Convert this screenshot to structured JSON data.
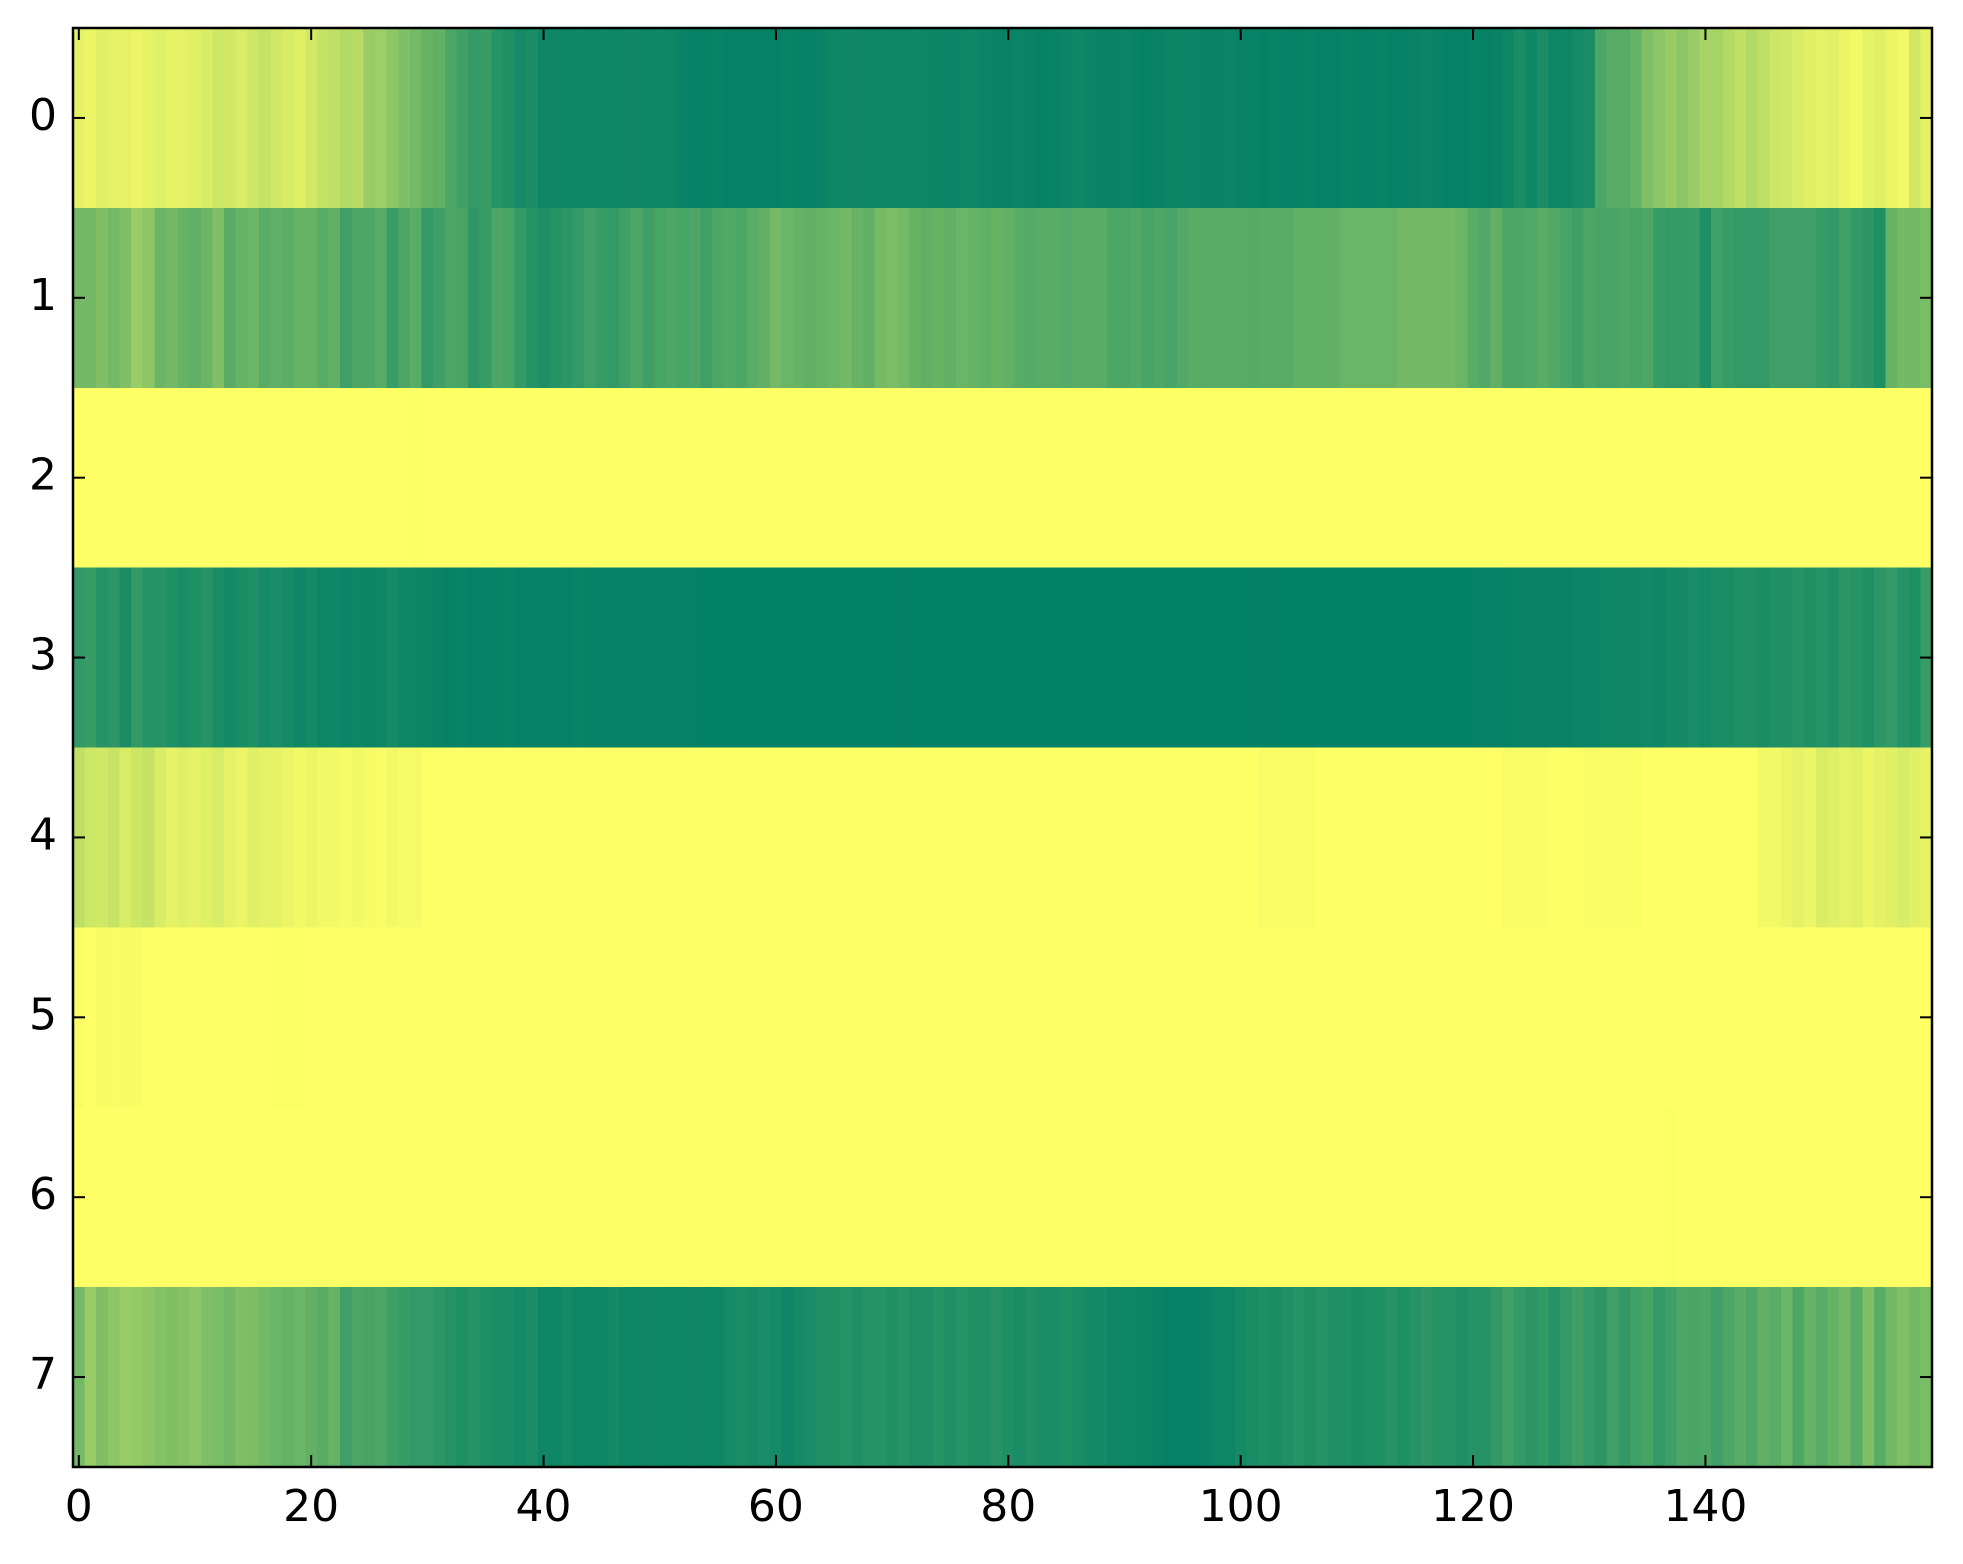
{
  "chart_data": {
    "type": "heatmap",
    "colormap": "summer",
    "xlim": [
      -0.5,
      159.5
    ],
    "ylim": [
      7.5,
      -0.5
    ],
    "xticks": [
      0,
      20,
      40,
      60,
      80,
      100,
      120,
      140
    ],
    "yticks": [
      0,
      1,
      2,
      3,
      4,
      5,
      6,
      7
    ],
    "values": [
      [
        0.9,
        0.92,
        0.88,
        0.9,
        0.9,
        0.92,
        0.9,
        0.88,
        0.9,
        0.9,
        0.88,
        0.85,
        0.8,
        0.82,
        0.85,
        0.8,
        0.78,
        0.82,
        0.85,
        0.88,
        0.82,
        0.78,
        0.75,
        0.7,
        0.72,
        0.6,
        0.62,
        0.55,
        0.5,
        0.45,
        0.4,
        0.38,
        0.3,
        0.25,
        0.2,
        0.22,
        0.15,
        0.12,
        0.08,
        0.1,
        0.06,
        0.06,
        0.05,
        0.06,
        0.05,
        0.06,
        0.05,
        0.06,
        0.06,
        0.05,
        0.06,
        0.05,
        0.03,
        0.02,
        0.02,
        0.03,
        0.02,
        0.02,
        0.02,
        0.02,
        0.02,
        0.03,
        0.02,
        0.02,
        0.03,
        0.05,
        0.06,
        0.06,
        0.05,
        0.06,
        0.05,
        0.05,
        0.06,
        0.05,
        0.04,
        0.04,
        0.05,
        0.06,
        0.04,
        0.03,
        0.03,
        0.04,
        0.03,
        0.02,
        0.03,
        0.04,
        0.06,
        0.04,
        0.03,
        0.03,
        0.04,
        0.03,
        0.02,
        0.03,
        0.04,
        0.05,
        0.04,
        0.03,
        0.03,
        0.04,
        0.03,
        0.03,
        0.02,
        0.03,
        0.02,
        0.02,
        0.03,
        0.02,
        0.02,
        0.03,
        0.02,
        0.02,
        0.03,
        0.02,
        0.02,
        0.03,
        0.04,
        0.03,
        0.02,
        0.02,
        0.03,
        0.02,
        0.03,
        0.05,
        0.1,
        0.06,
        0.1,
        0.05,
        0.06,
        0.08,
        0.1,
        0.3,
        0.35,
        0.35,
        0.4,
        0.5,
        0.55,
        0.6,
        0.55,
        0.6,
        0.65,
        0.65,
        0.7,
        0.75,
        0.7,
        0.75,
        0.8,
        0.82,
        0.85,
        0.88,
        0.9,
        0.88,
        0.92,
        0.95,
        0.9,
        0.88,
        0.92,
        0.95,
        0.82,
        0.9
      ],
      [
        0.45,
        0.45,
        0.5,
        0.45,
        0.5,
        0.6,
        0.55,
        0.42,
        0.45,
        0.4,
        0.38,
        0.42,
        0.5,
        0.35,
        0.4,
        0.42,
        0.35,
        0.38,
        0.36,
        0.4,
        0.4,
        0.35,
        0.38,
        0.25,
        0.3,
        0.3,
        0.35,
        0.22,
        0.3,
        0.35,
        0.2,
        0.25,
        0.3,
        0.28,
        0.18,
        0.22,
        0.3,
        0.28,
        0.2,
        0.15,
        0.12,
        0.15,
        0.18,
        0.2,
        0.25,
        0.22,
        0.2,
        0.25,
        0.3,
        0.25,
        0.28,
        0.3,
        0.28,
        0.3,
        0.25,
        0.3,
        0.32,
        0.3,
        0.35,
        0.38,
        0.45,
        0.42,
        0.4,
        0.38,
        0.4,
        0.42,
        0.45,
        0.4,
        0.38,
        0.45,
        0.48,
        0.45,
        0.4,
        0.38,
        0.4,
        0.38,
        0.42,
        0.4,
        0.38,
        0.4,
        0.38,
        0.35,
        0.33,
        0.35,
        0.35,
        0.33,
        0.35,
        0.35,
        0.35,
        0.3,
        0.3,
        0.32,
        0.28,
        0.3,
        0.28,
        0.32,
        0.35,
        0.35,
        0.35,
        0.35,
        0.35,
        0.33,
        0.35,
        0.35,
        0.35,
        0.38,
        0.38,
        0.38,
        0.38,
        0.42,
        0.42,
        0.42,
        0.42,
        0.42,
        0.45,
        0.45,
        0.45,
        0.45,
        0.45,
        0.42,
        0.35,
        0.32,
        0.38,
        0.3,
        0.3,
        0.32,
        0.35,
        0.32,
        0.28,
        0.25,
        0.3,
        0.28,
        0.28,
        0.3,
        0.28,
        0.3,
        0.22,
        0.2,
        0.2,
        0.22,
        0.12,
        0.25,
        0.22,
        0.2,
        0.2,
        0.2,
        0.25,
        0.25,
        0.25,
        0.25,
        0.22,
        0.2,
        0.25,
        0.2,
        0.18,
        0.12,
        0.4,
        0.45,
        0.45,
        0.48
      ],
      [
        1,
        1,
        1,
        1,
        1,
        1,
        1,
        1,
        1,
        1,
        1,
        1,
        1,
        1,
        1,
        1,
        1,
        1,
        1,
        1,
        1,
        1,
        1,
        1,
        1,
        1,
        1,
        1,
        1,
        0.99,
        1,
        1,
        1,
        1,
        1,
        1,
        1,
        1,
        1,
        1,
        1,
        1,
        1,
        1,
        1,
        1,
        1,
        1,
        1,
        1,
        1,
        1,
        1,
        1,
        1,
        1,
        1,
        1,
        1,
        1,
        1,
        1,
        1,
        1,
        1,
        1,
        1,
        1,
        1,
        1,
        1,
        1,
        1,
        1,
        1,
        1,
        1,
        1,
        1,
        1,
        1,
        1,
        1,
        1,
        1,
        1,
        1,
        1,
        1,
        1,
        1,
        1,
        1,
        1,
        1,
        1,
        1,
        1,
        1,
        1,
        1,
        1,
        1,
        1,
        1,
        1,
        1,
        1,
        1,
        1,
        1,
        1,
        1,
        1,
        1,
        1,
        1,
        1,
        1,
        1,
        1,
        1,
        1,
        1,
        1,
        1,
        1,
        1,
        1,
        1,
        1,
        1,
        1,
        1,
        1,
        1,
        1,
        1,
        1,
        1,
        1,
        1,
        1,
        1,
        1,
        1,
        1,
        1,
        1,
        1,
        1,
        1,
        1,
        1,
        1,
        1,
        1,
        1,
        1,
        1
      ],
      [
        0.2,
        0.22,
        0.15,
        0.18,
        0.1,
        0.2,
        0.15,
        0.15,
        0.12,
        0.1,
        0.12,
        0.15,
        0.1,
        0.08,
        0.1,
        0.12,
        0.08,
        0.1,
        0.08,
        0.06,
        0.08,
        0.05,
        0.06,
        0.04,
        0.05,
        0.04,
        0.06,
        0.08,
        0.06,
        0.05,
        0.04,
        0.03,
        0.02,
        0.03,
        0.02,
        0.02,
        0.02,
        0.03,
        0.02,
        0.02,
        0.02,
        0.02,
        0.02,
        0.03,
        0.02,
        0.02,
        0.02,
        0.02,
        0.02,
        0.02,
        0.02,
        0.02,
        0.02,
        0.02,
        0.01,
        0.01,
        0.01,
        0.01,
        0.01,
        0.01,
        0.01,
        0.01,
        0.01,
        0.01,
        0.01,
        0.01,
        0.01,
        0.01,
        0.01,
        0.01,
        0.01,
        0.02,
        0.01,
        0.01,
        0.01,
        0.01,
        0.01,
        0.01,
        0.01,
        0.01,
        0.01,
        0.01,
        0.01,
        0.01,
        0.01,
        0.01,
        0.01,
        0.01,
        0.01,
        0.01,
        0.01,
        0.01,
        0.01,
        0.01,
        0.01,
        0.01,
        0.01,
        0.01,
        0.01,
        0.01,
        0.01,
        0.01,
        0.02,
        0.01,
        0.01,
        0.01,
        0.01,
        0.01,
        0.01,
        0.01,
        0.01,
        0.01,
        0.01,
        0.01,
        0.01,
        0.01,
        0.01,
        0.01,
        0.01,
        0.01,
        0.02,
        0.02,
        0.02,
        0.02,
        0.03,
        0.03,
        0.03,
        0.03,
        0.03,
        0.04,
        0.04,
        0.05,
        0.05,
        0.06,
        0.06,
        0.07,
        0.06,
        0.08,
        0.08,
        0.1,
        0.08,
        0.1,
        0.1,
        0.12,
        0.12,
        0.1,
        0.12,
        0.12,
        0.15,
        0.12,
        0.15,
        0.12,
        0.18,
        0.15,
        0.12,
        0.18,
        0.2,
        0.15,
        0.12,
        0.22
      ],
      [
        0.75,
        0.8,
        0.82,
        0.78,
        0.85,
        0.8,
        0.78,
        0.85,
        0.9,
        0.88,
        0.9,
        0.88,
        0.85,
        0.9,
        0.92,
        0.88,
        0.9,
        0.9,
        0.92,
        0.95,
        0.92,
        0.95,
        0.95,
        0.97,
        0.95,
        0.97,
        0.98,
        0.95,
        0.97,
        0.96,
        1,
        1,
        1,
        1,
        1,
        1,
        1,
        1,
        1,
        1,
        1,
        1,
        1,
        1,
        1,
        1,
        1,
        1,
        1,
        1,
        1,
        1,
        1,
        1,
        1,
        1,
        1,
        1,
        1,
        1,
        1,
        1,
        1,
        1,
        1,
        1,
        1,
        1,
        1,
        1,
        1,
        1,
        1,
        1,
        1,
        1,
        1,
        1,
        1,
        1,
        1,
        1,
        1,
        1,
        1,
        1,
        1,
        1,
        1,
        1,
        1,
        1,
        1,
        1,
        1,
        1,
        1,
        1,
        1,
        1,
        1,
        1,
        0.98,
        0.98,
        0.98,
        0.98,
        0.98,
        1,
        1,
        1,
        1,
        1,
        1,
        1,
        1,
        1,
        1,
        1,
        1,
        1,
        1,
        1,
        1,
        0.98,
        0.98,
        0.98,
        0.98,
        1,
        1,
        1,
        0.98,
        0.98,
        0.98,
        0.98,
        0.98,
        1,
        1,
        1,
        1,
        1,
        1,
        1,
        1,
        1,
        1,
        0.95,
        0.95,
        0.92,
        0.9,
        0.92,
        0.85,
        0.88,
        0.9,
        0.88,
        0.92,
        0.9,
        0.88,
        0.85,
        0.88,
        0.9
      ],
      [
        0.98,
        1,
        0.97,
        0.98,
        0.97,
        0.98,
        1,
        1,
        1,
        1,
        1,
        1,
        1,
        1,
        1,
        1,
        1,
        0.99,
        0.99,
        0.99,
        1,
        1,
        1,
        1,
        1,
        1,
        1,
        1,
        1,
        1,
        1,
        1,
        1,
        1,
        1,
        1,
        1,
        1,
        1,
        1,
        1,
        1,
        1,
        1,
        1,
        1,
        1,
        1,
        1,
        1,
        1,
        1,
        1,
        1,
        1,
        1,
        1,
        1,
        1,
        1,
        1,
        1,
        1,
        1,
        1,
        1,
        1,
        1,
        1,
        1,
        1,
        1,
        1,
        1,
        1,
        1,
        1,
        1,
        1,
        1,
        1,
        1,
        1,
        1,
        1,
        1,
        1,
        1,
        1,
        1,
        1,
        1,
        1,
        1,
        1,
        1,
        1,
        1,
        1,
        1,
        1,
        1,
        1,
        1,
        1,
        1,
        1,
        1,
        1,
        1,
        1,
        1,
        1,
        1,
        1,
        1,
        1,
        1,
        1,
        1,
        1,
        1,
        1,
        1,
        1,
        1,
        1,
        1,
        1,
        1,
        1,
        1,
        1,
        1,
        1,
        1,
        1,
        1,
        1,
        1,
        1,
        1,
        1,
        1,
        1,
        1,
        1,
        1,
        1,
        1,
        1,
        1,
        1,
        1,
        1,
        1,
        1,
        1,
        1,
        1
      ],
      [
        1,
        1,
        1,
        1,
        1,
        1,
        1,
        1,
        1,
        1,
        1,
        1,
        1,
        1,
        1,
        1,
        1,
        1,
        1,
        1,
        1,
        1,
        1,
        1,
        1,
        1,
        1,
        1,
        1,
        1,
        1,
        1,
        1,
        1,
        1,
        1,
        1,
        1,
        1,
        1,
        1,
        1,
        1,
        1,
        1,
        1,
        1,
        1,
        1,
        1,
        1,
        1,
        1,
        1,
        1,
        1,
        1,
        1,
        1,
        1,
        1,
        1,
        1,
        1,
        1,
        1,
        1,
        1,
        1,
        1,
        1,
        1,
        1,
        1,
        1,
        1,
        1,
        1,
        1,
        1,
        1,
        1,
        1,
        1,
        1,
        1,
        1,
        1,
        1,
        1,
        1,
        1,
        1,
        1,
        1,
        1,
        1,
        1,
        1,
        1,
        1,
        1,
        1,
        1,
        1,
        1,
        1,
        1,
        1,
        1,
        1,
        1,
        1,
        1,
        1,
        1,
        1,
        1,
        1,
        1,
        1,
        1,
        1,
        1,
        1,
        1,
        1,
        1,
        1,
        1,
        1,
        1,
        1,
        1,
        1,
        1,
        1,
        0.99,
        1,
        1,
        1,
        1,
        1,
        1,
        1,
        1,
        1,
        1,
        1,
        1,
        1,
        1,
        1,
        1,
        1,
        1,
        1,
        1,
        1,
        1
      ],
      [
        0.45,
        0.6,
        0.5,
        0.55,
        0.6,
        0.58,
        0.55,
        0.52,
        0.5,
        0.52,
        0.55,
        0.5,
        0.48,
        0.45,
        0.5,
        0.48,
        0.45,
        0.42,
        0.4,
        0.42,
        0.38,
        0.35,
        0.4,
        0.25,
        0.3,
        0.28,
        0.3,
        0.25,
        0.22,
        0.2,
        0.2,
        0.18,
        0.15,
        0.12,
        0.15,
        0.12,
        0.1,
        0.1,
        0.08,
        0.1,
        0.06,
        0.05,
        0.08,
        0.06,
        0.05,
        0.06,
        0.08,
        0.06,
        0.05,
        0.06,
        0.06,
        0.05,
        0.05,
        0.06,
        0.05,
        0.06,
        0.08,
        0.1,
        0.08,
        0.1,
        0.08,
        0.06,
        0.08,
        0.1,
        0.12,
        0.12,
        0.15,
        0.12,
        0.15,
        0.15,
        0.12,
        0.15,
        0.12,
        0.12,
        0.15,
        0.12,
        0.15,
        0.12,
        0.12,
        0.15,
        0.12,
        0.1,
        0.12,
        0.1,
        0.1,
        0.12,
        0.1,
        0.08,
        0.08,
        0.06,
        0.06,
        0.05,
        0.04,
        0.03,
        0.02,
        0.02,
        0.02,
        0.03,
        0.05,
        0.06,
        0.08,
        0.1,
        0.12,
        0.1,
        0.12,
        0.15,
        0.12,
        0.15,
        0.12,
        0.12,
        0.1,
        0.12,
        0.12,
        0.15,
        0.12,
        0.15,
        0.18,
        0.15,
        0.15,
        0.12,
        0.15,
        0.15,
        0.2,
        0.25,
        0.2,
        0.18,
        0.2,
        0.15,
        0.2,
        0.25,
        0.2,
        0.18,
        0.25,
        0.2,
        0.25,
        0.28,
        0.2,
        0.25,
        0.3,
        0.28,
        0.3,
        0.25,
        0.3,
        0.35,
        0.3,
        0.38,
        0.35,
        0.42,
        0.3,
        0.4,
        0.35,
        0.4,
        0.45,
        0.35,
        0.5,
        0.35,
        0.45,
        0.5,
        0.45,
        0.48
      ]
    ]
  }
}
